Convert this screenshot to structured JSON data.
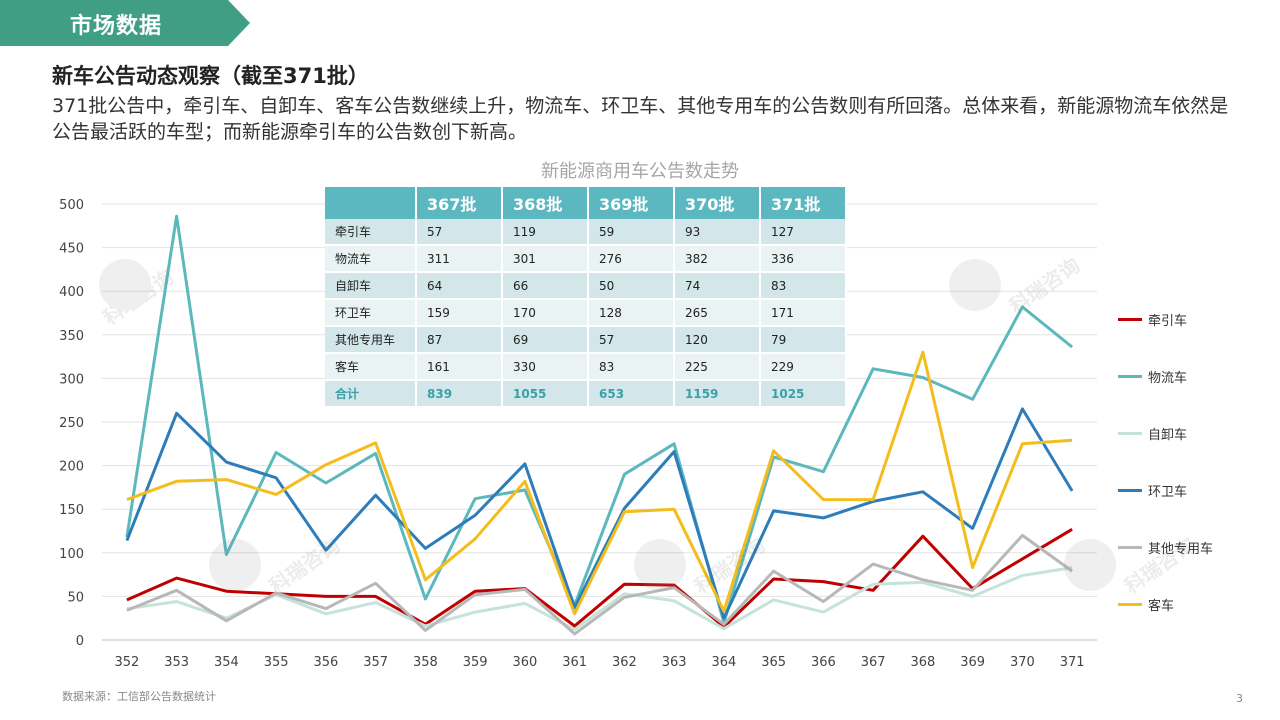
{
  "banner": {
    "title": "市场数据"
  },
  "headline": "新车公告动态观察（截至371批）",
  "description": "371批公告中，牵引车、自卸车、客车公告数继续上升，物流车、环卫车、其他专用车的公告数则有所回落。总体来看，新能源物流车依然是公告最活跃的车型；而新能源牵引车的公告数创下新高。",
  "watermark": "科瑞咨询",
  "chart_data": {
    "type": "line",
    "title": "新能源商用车公告数走势",
    "categories": [
      "352",
      "353",
      "354",
      "355",
      "356",
      "357",
      "358",
      "359",
      "360",
      "361",
      "362",
      "363",
      "364",
      "365",
      "366",
      "367",
      "368",
      "369",
      "370",
      "371"
    ],
    "yticks": [
      0,
      50,
      100,
      150,
      200,
      250,
      300,
      350,
      400,
      450,
      500
    ],
    "ylim": [
      0,
      500
    ],
    "grid": true,
    "legend_position": "right",
    "series": [
      {
        "name": "牵引车",
        "color": "#c00000",
        "values": [
          46,
          71,
          56,
          53,
          50,
          50,
          18,
          56,
          59,
          16,
          64,
          63,
          15,
          70,
          67,
          57,
          119,
          59,
          93,
          127
        ]
      },
      {
        "name": "物流车",
        "color": "#5bb8bc",
        "values": [
          118,
          486,
          98,
          215,
          180,
          214,
          47,
          162,
          172,
          40,
          190,
          225,
          20,
          210,
          193,
          311,
          301,
          276,
          382,
          336
        ]
      },
      {
        "name": "自卸车",
        "color": "#c5e3d8",
        "values": [
          36,
          44,
          25,
          52,
          30,
          43,
          16,
          32,
          42,
          12,
          53,
          45,
          13,
          46,
          32,
          64,
          66,
          50,
          74,
          83
        ]
      },
      {
        "name": "环卫车",
        "color": "#2e7dba",
        "values": [
          114,
          260,
          204,
          186,
          103,
          166,
          105,
          143,
          202,
          37,
          151,
          216,
          25,
          148,
          140,
          159,
          170,
          128,
          265,
          171
        ]
      },
      {
        "name": "其他专用车",
        "color": "#b8b8b8",
        "values": [
          34,
          57,
          22,
          54,
          36,
          65,
          11,
          52,
          58,
          7,
          49,
          60,
          18,
          79,
          44,
          87,
          69,
          57,
          120,
          79
        ]
      },
      {
        "name": "客车",
        "color": "#f4bd1e",
        "values": [
          161,
          182,
          184,
          167,
          201,
          226,
          69,
          116,
          182,
          30,
          147,
          150,
          33,
          217,
          161,
          161,
          330,
          83,
          225,
          229
        ]
      }
    ]
  },
  "table": {
    "headers": [
      "",
      "367批",
      "368批",
      "369批",
      "370批",
      "371批"
    ],
    "rows": [
      {
        "label": "牵引车",
        "values": [
          "57",
          "119",
          "59",
          "93",
          "127"
        ]
      },
      {
        "label": "物流车",
        "values": [
          "311",
          "301",
          "276",
          "382",
          "336"
        ]
      },
      {
        "label": "自卸车",
        "values": [
          "64",
          "66",
          "50",
          "74",
          "83"
        ]
      },
      {
        "label": "环卫车",
        "values": [
          "159",
          "170",
          "128",
          "265",
          "171"
        ]
      },
      {
        "label": "其他专用车",
        "values": [
          "87",
          "69",
          "57",
          "120",
          "79"
        ]
      },
      {
        "label": "客车",
        "values": [
          "161",
          "330",
          "83",
          "225",
          "229"
        ]
      }
    ],
    "total": {
      "label": "合计",
      "values": [
        "839",
        "1055",
        "653",
        "1159",
        "1025"
      ]
    }
  },
  "footer": {
    "source": "数据来源：工信部公告数据统计",
    "page": "3"
  }
}
